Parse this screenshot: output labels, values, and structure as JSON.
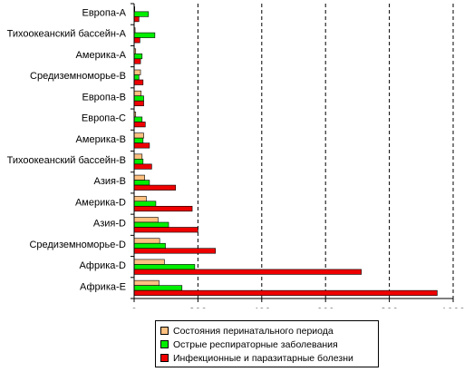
{
  "chart_data": {
    "type": "bar",
    "orientation": "horizontal",
    "categories": [
      "Европа-A",
      "Тихоокеанский бассейн-A",
      "Америка-A",
      "Средиземноморье-B",
      "Европа-B",
      "Европа-C",
      "Америка-B",
      "Тихоокеанский бассейн-B",
      "Азия-B",
      "Америка-D",
      "Азия-D",
      "Средиземноморье-D",
      "Африка-D",
      "Африка-E"
    ],
    "series": [
      {
        "name": "Состояния перинатального периода",
        "color": "#FFC080",
        "values": [
          2,
          3,
          5,
          20,
          22,
          5,
          30,
          25,
          33,
          38,
          75,
          80,
          95,
          78
        ]
      },
      {
        "name": "Острые респираторные заболевания",
        "color": "#00EE00",
        "values": [
          45,
          65,
          25,
          15,
          30,
          25,
          28,
          28,
          48,
          68,
          108,
          98,
          190,
          150
        ]
      },
      {
        "name": "Инфекционные и паразитарные болезни",
        "color": "#EE0000",
        "values": [
          15,
          18,
          20,
          28,
          30,
          35,
          48,
          55,
          130,
          182,
          200,
          255,
          712,
          950
        ]
      }
    ],
    "xlim": [
      0,
      1000
    ],
    "xticks": [
      "0",
      "200",
      "400",
      "600",
      "800",
      "1000"
    ],
    "grid": "vertical dashed at major ticks",
    "legend_position": "bottom"
  }
}
